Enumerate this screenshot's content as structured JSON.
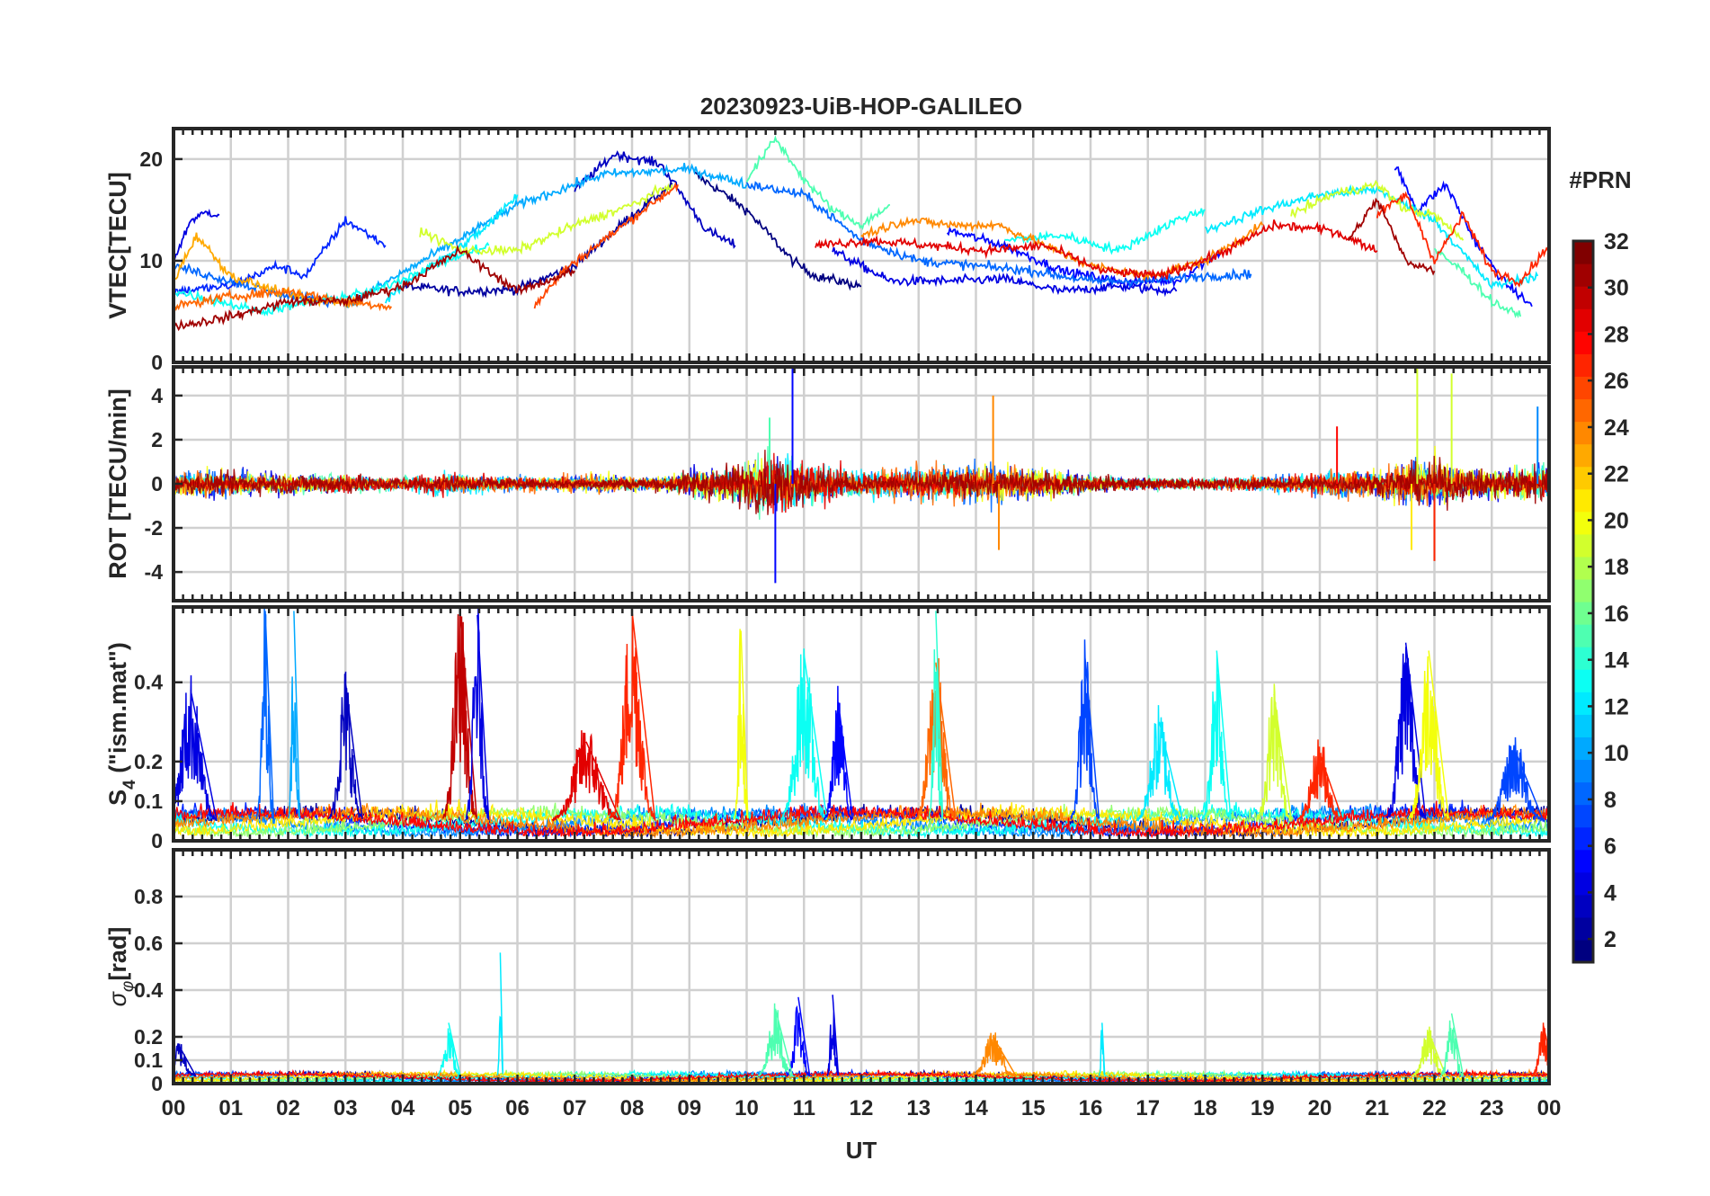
{
  "title": "20230923-UiB-HOP-GALILEO",
  "xlabel": "UT",
  "colorbar": {
    "label": "#PRN",
    "ticks": [
      2,
      4,
      6,
      8,
      10,
      12,
      14,
      16,
      18,
      20,
      22,
      24,
      26,
      28,
      30,
      32
    ],
    "range": [
      1,
      32
    ]
  },
  "chart_data": [
    {
      "type": "line",
      "name": "vtec-panel",
      "ylabel": "VTEC[TECU]",
      "ylim": [
        0,
        23
      ],
      "yticks": [
        0,
        10,
        20
      ],
      "xlim": [
        0,
        24
      ],
      "xticklabels": [
        "00",
        "01",
        "02",
        "03",
        "04",
        "05",
        "06",
        "07",
        "08",
        "09",
        "10",
        "11",
        "12",
        "13",
        "14",
        "15",
        "16",
        "17",
        "18",
        "19",
        "20",
        "21",
        "22",
        "23",
        "00"
      ],
      "series": [
        {
          "prn": 1,
          "x": [
            9.1,
            9.5,
            10.0,
            10.4,
            10.8,
            11.2,
            11.6,
            12.0
          ],
          "values": [
            18.5,
            17.0,
            15.0,
            12.5,
            10.0,
            8.5,
            8.0,
            7.5
          ]
        },
        {
          "prn": 2,
          "x": [
            4.0,
            5.0,
            6.0,
            7.0,
            8.0,
            8.7
          ],
          "values": [
            7.5,
            7.0,
            7.2,
            9.5,
            14.5,
            17.5
          ]
        },
        {
          "prn": 3,
          "x": [
            7.0,
            7.7,
            8.5,
            9.3,
            9.8
          ],
          "values": [
            17.0,
            20.5,
            19.5,
            13.0,
            11.5
          ]
        },
        {
          "prn": 4,
          "x": [
            0.0,
            0.3,
            0.6,
            0.8
          ],
          "values": [
            10.0,
            14.0,
            14.8,
            14.5
          ]
        },
        {
          "prn": 4,
          "x": [
            11.5,
            12.5,
            13.5,
            14.5,
            15.5,
            16.5,
            17.5
          ],
          "values": [
            11.0,
            8.0,
            8.0,
            8.2,
            7.0,
            7.5,
            7.0
          ]
        },
        {
          "prn": 5,
          "x": [
            21.3,
            21.7,
            22.2,
            22.7,
            23.2,
            23.7
          ],
          "values": [
            19.5,
            15.0,
            17.5,
            12.0,
            8.0,
            5.5
          ]
        },
        {
          "prn": 5,
          "x": [
            13.5,
            14.5,
            15.5,
            16.5,
            17.5,
            18.3
          ],
          "values": [
            13.0,
            11.5,
            9.0,
            8.0,
            8.0,
            11.0
          ]
        },
        {
          "prn": 6,
          "x": [
            0.0,
            1.0,
            1.8,
            2.3,
            3.0,
            3.7
          ],
          "values": [
            7.0,
            7.5,
            9.5,
            8.5,
            14.0,
            11.5
          ]
        },
        {
          "prn": 8,
          "x": [
            10.0,
            11.0,
            12.0,
            13.0,
            14.0,
            15.0,
            16.0,
            17.0,
            18.0,
            18.8
          ],
          "values": [
            17.5,
            16.5,
            12.0,
            10.0,
            9.5,
            9.0,
            8.0,
            8.0,
            8.5,
            8.7
          ]
        },
        {
          "prn": 8,
          "x": [
            0.0,
            1.0,
            2.0,
            2.8
          ],
          "values": [
            9.5,
            8.0,
            6.5,
            6.0
          ]
        },
        {
          "prn": 10,
          "x": [
            3.0,
            4.5,
            6.0,
            7.5,
            9.0,
            10.0
          ],
          "values": [
            5.5,
            10.5,
            15.5,
            18.5,
            19.0,
            17.5
          ]
        },
        {
          "prn": 12,
          "x": [
            18.0,
            19.0,
            20.0,
            21.0,
            22.0,
            23.0,
            23.8
          ],
          "values": [
            13.0,
            15.0,
            16.5,
            17.0,
            14.0,
            7.5,
            8.5
          ]
        },
        {
          "prn": 12,
          "x": [
            3.7,
            4.2,
            4.8,
            5.5,
            6.0
          ],
          "values": [
            6.0,
            8.5,
            10.5,
            13.5,
            16.5
          ]
        },
        {
          "prn": 13,
          "x": [
            0.0,
            0.8,
            1.5,
            2.5,
            3.5,
            4.5,
            5.5
          ],
          "values": [
            7.0,
            6.0,
            5.0,
            6.0,
            7.0,
            9.5,
            11.5
          ]
        },
        {
          "prn": 13,
          "x": [
            14.5,
            15.5,
            16.5,
            17.5,
            18.0
          ],
          "values": [
            12.0,
            12.5,
            11.0,
            14.0,
            15.0
          ]
        },
        {
          "prn": 15,
          "x": [
            10.0,
            10.5,
            11.0,
            11.5,
            12.0,
            12.5
          ],
          "values": [
            18.0,
            22.0,
            18.0,
            15.0,
            13.5,
            15.5
          ]
        },
        {
          "prn": 15,
          "x": [
            22.0,
            22.5,
            23.0,
            23.5
          ],
          "values": [
            11.0,
            9.0,
            6.0,
            4.5
          ]
        },
        {
          "prn": 19,
          "x": [
            4.3,
            5.0,
            6.0,
            7.0,
            8.0,
            8.7
          ],
          "values": [
            13.0,
            11.0,
            11.0,
            13.5,
            15.5,
            17.5
          ]
        },
        {
          "prn": 19,
          "x": [
            19.5,
            20.2,
            21.0,
            21.5,
            22.0,
            22.5
          ],
          "values": [
            14.5,
            16.5,
            17.5,
            15.0,
            14.5,
            12.0
          ]
        },
        {
          "prn": 23,
          "x": [
            0.0,
            0.4,
            1.0,
            1.8,
            2.5,
            3.3
          ],
          "values": [
            8.0,
            12.5,
            8.5,
            7.0,
            6.0,
            6.0
          ]
        },
        {
          "prn": 24,
          "x": [
            12.0,
            12.8,
            13.6,
            14.4,
            15.2,
            16.0,
            17.0,
            18.0,
            19.0
          ],
          "values": [
            12.5,
            14.0,
            13.5,
            13.5,
            11.5,
            9.5,
            8.5,
            10.0,
            13.5
          ]
        },
        {
          "prn": 25,
          "x": [
            0.0,
            1.0,
            2.0,
            3.0,
            3.8
          ],
          "values": [
            5.5,
            6.5,
            7.0,
            6.0,
            5.5
          ]
        },
        {
          "prn": 26,
          "x": [
            6.3,
            6.8,
            7.5,
            8.2,
            8.8
          ],
          "values": [
            5.5,
            9.0,
            12.0,
            15.0,
            17.5
          ]
        },
        {
          "prn": 27,
          "x": [
            21.0,
            21.5,
            22.0,
            22.5,
            23.0,
            23.5,
            24.0
          ],
          "values": [
            14.5,
            16.5,
            10.0,
            14.5,
            9.0,
            8.0,
            11.5
          ]
        },
        {
          "prn": 29,
          "x": [
            11.2,
            12.2,
            13.2,
            14.2,
            15.2,
            16.2,
            17.2,
            18.2,
            19.2,
            20.2,
            21.0
          ],
          "values": [
            11.5,
            12.0,
            11.5,
            11.0,
            11.5,
            9.0,
            8.5,
            10.5,
            13.5,
            13.0,
            11.0
          ]
        },
        {
          "prn": 31,
          "x": [
            0.0,
            1.0,
            2.0,
            3.0,
            4.0,
            5.0,
            6.0,
            7.0
          ],
          "values": [
            3.5,
            4.5,
            6.0,
            6.0,
            7.5,
            11.0,
            7.0,
            9.0
          ]
        },
        {
          "prn": 31,
          "x": [
            20.5,
            21.0,
            21.5,
            22.0
          ],
          "values": [
            12.0,
            16.0,
            10.0,
            9.0
          ]
        }
      ]
    },
    {
      "type": "line",
      "name": "rot-panel",
      "ylabel": "ROT [TECU/min]",
      "ylim": [
        -5.3,
        5.3
      ],
      "yticks": [
        -4,
        -2,
        0,
        2,
        4
      ],
      "xlim": [
        0,
        24
      ],
      "activity": [
        [
          0.0,
          0.9
        ],
        [
          0.5,
          0.9
        ],
        [
          1.0,
          0.9
        ],
        [
          1.5,
          0.7
        ],
        [
          2.0,
          0.7
        ],
        [
          2.5,
          0.6
        ],
        [
          3.0,
          0.7
        ],
        [
          3.5,
          0.5
        ],
        [
          4.0,
          0.5
        ],
        [
          4.5,
          0.7
        ],
        [
          5.0,
          0.8
        ],
        [
          5.5,
          0.6
        ],
        [
          6.0,
          0.5
        ],
        [
          6.5,
          0.5
        ],
        [
          7.0,
          0.6
        ],
        [
          7.5,
          0.6
        ],
        [
          8.0,
          0.5
        ],
        [
          8.5,
          0.5
        ],
        [
          9.0,
          0.9
        ],
        [
          9.5,
          1.2
        ],
        [
          10.0,
          1.5
        ],
        [
          10.5,
          2.2
        ],
        [
          11.0,
          1.6
        ],
        [
          11.5,
          1.2
        ],
        [
          12.0,
          0.9
        ],
        [
          12.5,
          1.0
        ],
        [
          13.0,
          1.2
        ],
        [
          13.5,
          1.4
        ],
        [
          14.0,
          1.3
        ],
        [
          14.5,
          1.2
        ],
        [
          15.0,
          1.0
        ],
        [
          15.5,
          0.8
        ],
        [
          16.0,
          0.6
        ],
        [
          16.5,
          0.5
        ],
        [
          17.0,
          0.4
        ],
        [
          17.5,
          0.4
        ],
        [
          18.0,
          0.4
        ],
        [
          18.5,
          0.5
        ],
        [
          19.0,
          0.6
        ],
        [
          19.5,
          0.6
        ],
        [
          20.0,
          0.8
        ],
        [
          20.5,
          1.0
        ],
        [
          21.0,
          1.0
        ],
        [
          21.5,
          1.5
        ],
        [
          22.0,
          1.8
        ],
        [
          22.5,
          1.1
        ],
        [
          23.0,
          0.9
        ],
        [
          23.5,
          1.2
        ],
        [
          24.0,
          1.3
        ]
      ],
      "peaks": [
        {
          "prn": 5,
          "x": 10.8,
          "y": 5.4
        },
        {
          "prn": 5,
          "x": 10.5,
          "y": -4.5
        },
        {
          "prn": 19,
          "x": 21.7,
          "y": 5.5
        },
        {
          "prn": 19,
          "x": 22.3,
          "y": 5.0
        },
        {
          "prn": 21,
          "x": 21.6,
          "y": -3.0
        },
        {
          "prn": 28,
          "x": 20.3,
          "y": 2.6
        },
        {
          "prn": 27,
          "x": 22.0,
          "y": -3.5
        },
        {
          "prn": 24,
          "x": 14.3,
          "y": 4.0
        },
        {
          "prn": 24,
          "x": 14.4,
          "y": -3.0
        },
        {
          "prn": 9,
          "x": 23.8,
          "y": 3.5
        },
        {
          "prn": 15,
          "x": 10.4,
          "y": 3.0
        }
      ]
    },
    {
      "type": "line",
      "name": "s4-panel",
      "ylabel": "S4 (\"ism.mat\")",
      "ylim": [
        0,
        0.59
      ],
      "yticks": [
        0,
        0.1,
        0.2,
        0.4
      ],
      "xlim": [
        0,
        24
      ],
      "bursts": [
        {
          "prn": 4,
          "x": 0.3,
          "peak": 0.38,
          "w": 0.45
        },
        {
          "prn": 8,
          "x": 1.6,
          "peak": 0.58,
          "w": 0.15
        },
        {
          "prn": 10,
          "x": 2.1,
          "peak": 0.58,
          "w": 0.1
        },
        {
          "prn": 3,
          "x": 3.0,
          "peak": 0.4,
          "w": 0.3
        },
        {
          "prn": 30,
          "x": 5.0,
          "peak": 0.58,
          "w": 0.3
        },
        {
          "prn": 4,
          "x": 5.3,
          "peak": 0.57,
          "w": 0.2
        },
        {
          "prn": 29,
          "x": 7.2,
          "peak": 0.25,
          "w": 0.6
        },
        {
          "prn": 27,
          "x": 8.0,
          "peak": 0.58,
          "w": 0.4
        },
        {
          "prn": 20,
          "x": 9.9,
          "peak": 0.53,
          "w": 0.12
        },
        {
          "prn": 13,
          "x": 11.0,
          "peak": 0.47,
          "w": 0.4
        },
        {
          "prn": 5,
          "x": 11.6,
          "peak": 0.35,
          "w": 0.25
        },
        {
          "prn": 25,
          "x": 13.3,
          "peak": 0.45,
          "w": 0.35
        },
        {
          "prn": 14,
          "x": 13.3,
          "peak": 0.58,
          "w": 0.12
        },
        {
          "prn": 7,
          "x": 15.9,
          "peak": 0.47,
          "w": 0.25
        },
        {
          "prn": 12,
          "x": 17.2,
          "peak": 0.3,
          "w": 0.4
        },
        {
          "prn": 13,
          "x": 18.2,
          "peak": 0.48,
          "w": 0.25
        },
        {
          "prn": 19,
          "x": 19.2,
          "peak": 0.37,
          "w": 0.3
        },
        {
          "prn": 27,
          "x": 20.0,
          "peak": 0.22,
          "w": 0.4
        },
        {
          "prn": 4,
          "x": 21.5,
          "peak": 0.5,
          "w": 0.35
        },
        {
          "prn": 20,
          "x": 21.9,
          "peak": 0.48,
          "w": 0.35
        },
        {
          "prn": 7,
          "x": 23.4,
          "peak": 0.23,
          "w": 0.5
        }
      ]
    },
    {
      "type": "line",
      "name": "sigma-phi-panel",
      "ylabel": "σφ[rad]",
      "ylim": [
        0,
        1.0
      ],
      "yticks": [
        0,
        0.1,
        0.2,
        0.4,
        0.6,
        0.8
      ],
      "xlim": [
        0,
        24
      ],
      "bursts": [
        {
          "prn": 13,
          "x": 4.8,
          "peak": 0.26,
          "w": 0.2
        },
        {
          "prn": 12,
          "x": 5.7,
          "peak": 0.56,
          "w": 0.05
        },
        {
          "prn": 5,
          "x": 10.9,
          "peak": 0.37,
          "w": 0.2
        },
        {
          "prn": 4,
          "x": 11.5,
          "peak": 0.38,
          "w": 0.1
        },
        {
          "prn": 15,
          "x": 10.5,
          "peak": 0.32,
          "w": 0.3
        },
        {
          "prn": 24,
          "x": 14.3,
          "peak": 0.2,
          "w": 0.4
        },
        {
          "prn": 12,
          "x": 16.2,
          "peak": 0.26,
          "w": 0.05
        },
        {
          "prn": 19,
          "x": 21.9,
          "peak": 0.22,
          "w": 0.3
        },
        {
          "prn": 15,
          "x": 22.3,
          "peak": 0.3,
          "w": 0.2
        },
        {
          "prn": 27,
          "x": 23.9,
          "peak": 0.25,
          "w": 0.2
        },
        {
          "prn": 3,
          "x": 0.1,
          "peak": 0.16,
          "w": 0.3
        }
      ]
    }
  ]
}
